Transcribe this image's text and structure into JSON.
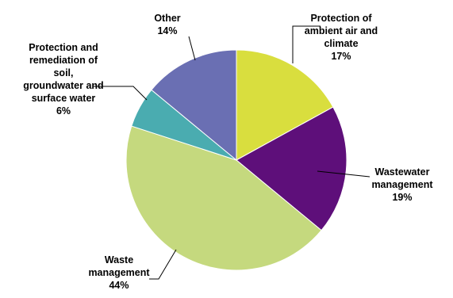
{
  "chart_data": {
    "type": "pie",
    "slices": [
      {
        "label": "Protection of ambient air and climate",
        "lines": [
          "Protection of",
          "ambient air and",
          "climate"
        ],
        "value": 17,
        "value_text": "17%",
        "color": "#d9de3e"
      },
      {
        "label": "Wastewater management",
        "lines": [
          "Wastewater",
          "management"
        ],
        "value": 19,
        "value_text": "19%",
        "color": "#5e0f7a"
      },
      {
        "label": "Waste management",
        "lines": [
          "Waste",
          "management"
        ],
        "value": 44,
        "value_text": "44%",
        "color": "#c5d97e"
      },
      {
        "label": "Protection and remediation of soil, groundwater and surface water",
        "lines": [
          "Protection and",
          "remediation of",
          "soil,",
          "groundwater and",
          "surface water"
        ],
        "value": 6,
        "value_text": "6%",
        "color": "#4aacb0"
      },
      {
        "label": "Other",
        "lines": [
          "Other"
        ],
        "value": 14,
        "value_text": "14%",
        "color": "#6a6fb3"
      }
    ]
  }
}
